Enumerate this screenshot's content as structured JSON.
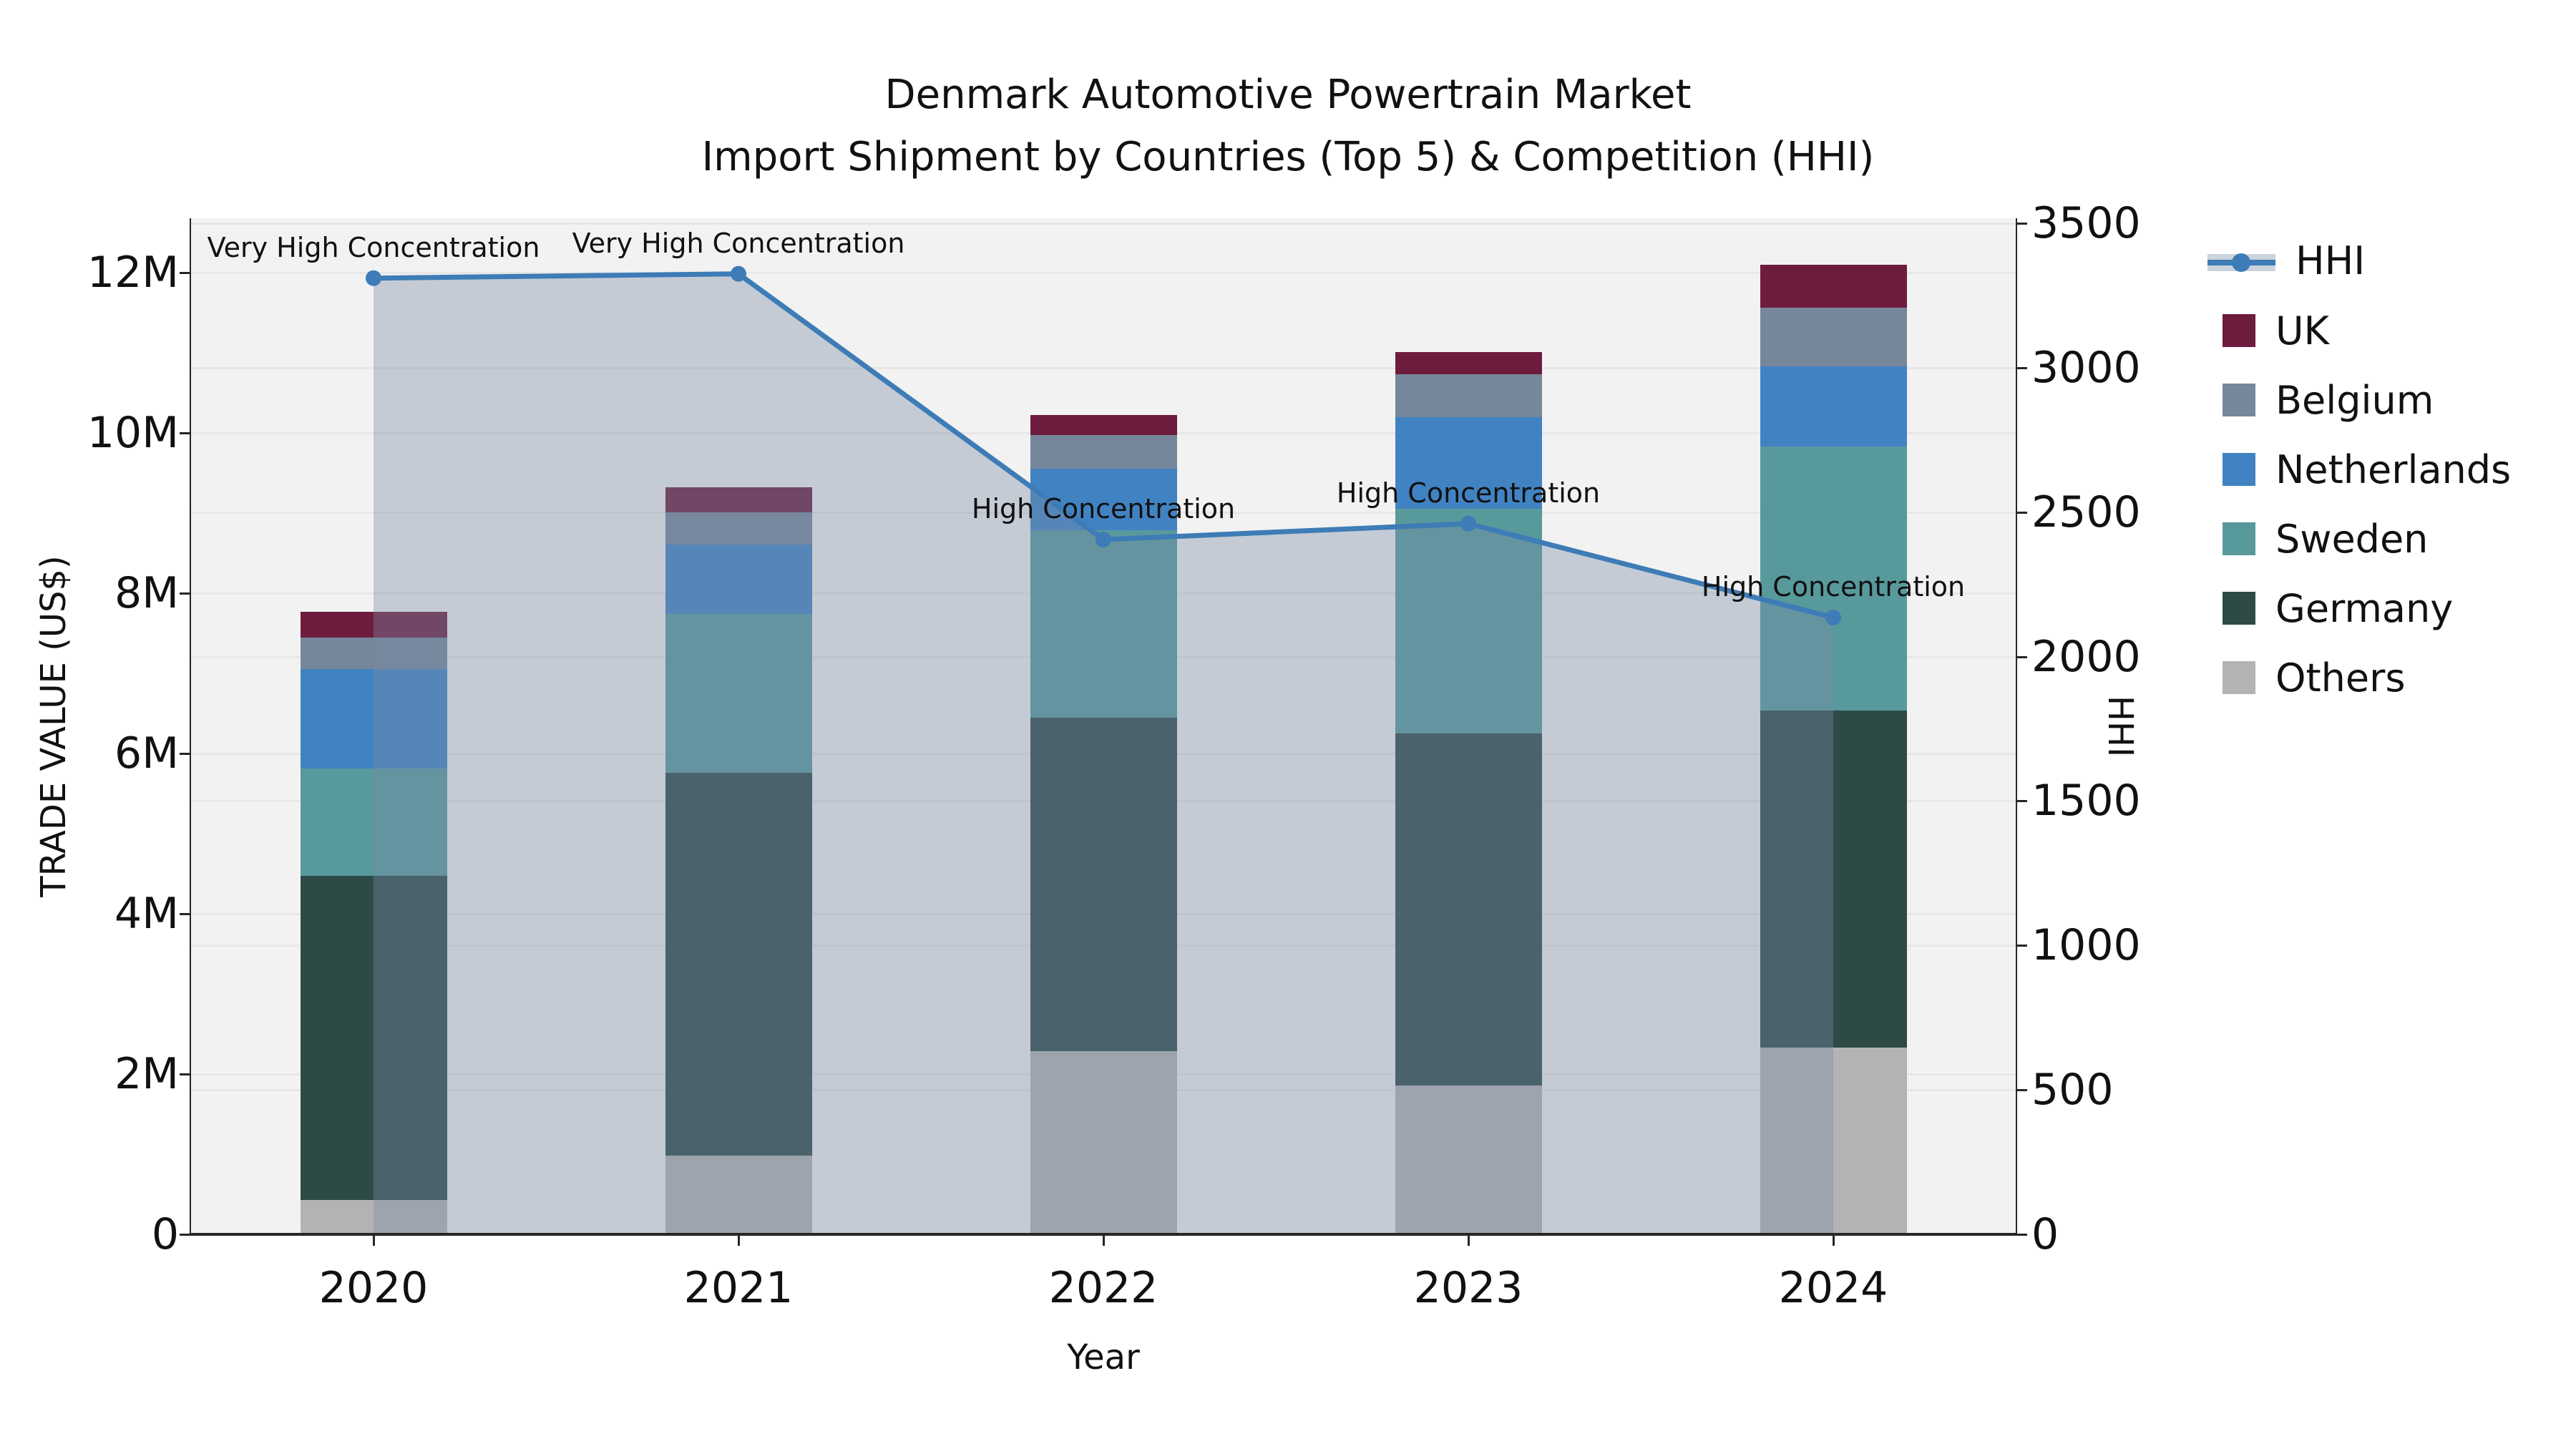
{
  "title": {
    "line1": "Denmark Automotive Powertrain Market",
    "line2": "Import Shipment by Countries (Top 5) & Competition (HHI)"
  },
  "axes": {
    "y_left_label": "TRADE VALUE (US$)",
    "y_right_label": "HHI",
    "x_label": "Year",
    "y_left_ticks": [
      {
        "label": "0",
        "value": 0
      },
      {
        "label": "2M",
        "value": 2
      },
      {
        "label": "4M",
        "value": 4
      },
      {
        "label": "6M",
        "value": 6
      },
      {
        "label": "8M",
        "value": 8
      },
      {
        "label": "10M",
        "value": 10
      },
      {
        "label": "12M",
        "value": 12
      }
    ],
    "y_right_ticks": [
      {
        "label": "0",
        "value": 0
      },
      {
        "label": "500",
        "value": 500
      },
      {
        "label": "1000",
        "value": 1000
      },
      {
        "label": "1500",
        "value": 1500
      },
      {
        "label": "2000",
        "value": 2000
      },
      {
        "label": "2500",
        "value": 2500
      },
      {
        "label": "3000",
        "value": 3000
      },
      {
        "label": "3500",
        "value": 3500
      }
    ]
  },
  "legend": {
    "entries": [
      {
        "label": "HHI",
        "type": "line",
        "color": "#3d7cb6"
      },
      {
        "label": "UK",
        "type": "square",
        "color": "#6e1c3e"
      },
      {
        "label": "Belgium",
        "type": "square",
        "color": "#76879b"
      },
      {
        "label": "Netherlands",
        "type": "square",
        "color": "#4183c2"
      },
      {
        "label": "Sweden",
        "type": "square",
        "color": "#58999c"
      },
      {
        "label": "Germany",
        "type": "square",
        "color": "#2e4a47"
      },
      {
        "label": "Others",
        "type": "square",
        "color": "#b3b3b3"
      }
    ]
  },
  "colors": {
    "plot_background": "#f2f2f2",
    "gridline": "#e7e7e7",
    "hhi_line": "#3d7cb6",
    "hhi_band_fill": "rgba(121,139,165,0.38)",
    "spine": "#262626"
  },
  "chart_data": {
    "type": "bar",
    "subtype": "stacked-bars-with-line-overlay",
    "title": "Denmark Automotive Powertrain Market — Import Shipment by Countries (Top 5) & Competition (HHI)",
    "xlabel": "Year",
    "ylabel_left": "TRADE VALUE (US$)",
    "ylabel_right": "HHI",
    "categories": [
      "2020",
      "2021",
      "2022",
      "2023",
      "2024"
    ],
    "bar_unit": "millions US$",
    "stack_order_bottom_to_top": [
      "Others",
      "Germany",
      "Sweden",
      "Netherlands",
      "Belgium",
      "UK"
    ],
    "series": [
      {
        "name": "Others",
        "color": "#b3b3b3",
        "values": [
          0.43,
          0.98,
          2.29,
          1.86,
          2.33
        ]
      },
      {
        "name": "Germany",
        "color": "#2e4a47",
        "values": [
          4.04,
          4.78,
          4.16,
          4.39,
          4.21
        ]
      },
      {
        "name": "Sweden",
        "color": "#58999c",
        "values": [
          1.34,
          1.98,
          2.34,
          2.8,
          3.29
        ]
      },
      {
        "name": "Netherlands",
        "color": "#4183c2",
        "values": [
          1.24,
          0.87,
          0.76,
          1.15,
          1.0
        ]
      },
      {
        "name": "Belgium",
        "color": "#76879b",
        "values": [
          0.4,
          0.4,
          0.42,
          0.53,
          0.73
        ]
      },
      {
        "name": "UK",
        "color": "#6e1c3e",
        "values": [
          0.32,
          0.31,
          0.25,
          0.28,
          0.54
        ]
      }
    ],
    "bar_totals": [
      7.77,
      9.32,
      10.22,
      11.01,
      12.1
    ],
    "line_series": {
      "name": "HHI",
      "color": "#3d7cb6",
      "values": [
        3310,
        3325,
        2405,
        2460,
        2135
      ],
      "area_fill_under_line": true,
      "annotations": [
        "Very High Concentration",
        "Very High Concentration",
        "High Concentration",
        "High Concentration",
        "High Concentration"
      ]
    },
    "ylim_left_millions": [
      0,
      12.68
    ],
    "ylim_right": [
      0,
      3518
    ],
    "grid": true,
    "legend_position": "right"
  }
}
